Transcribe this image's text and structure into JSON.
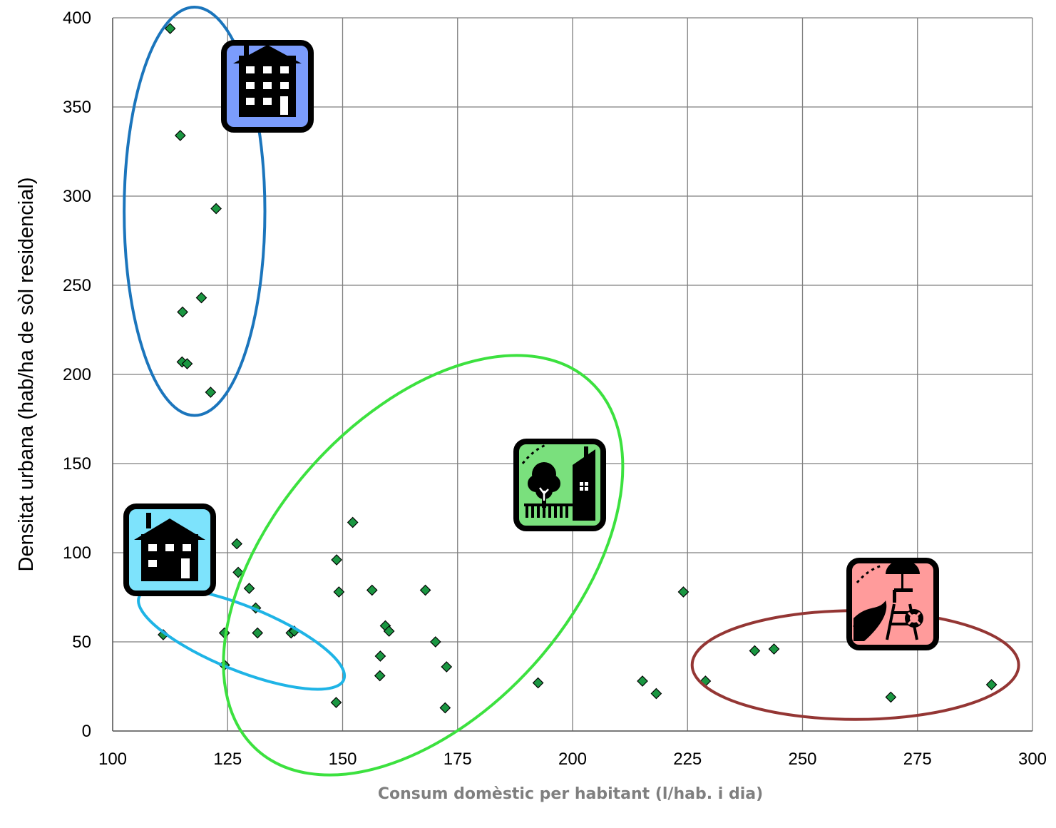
{
  "chart_data": {
    "type": "scatter",
    "title": "",
    "xlabel": "Consum domèstic per habitant (l/hab. i dia)",
    "ylabel": "Densitat urbana (hab/ha de sòl residencial)",
    "xlim": [
      100,
      300
    ],
    "ylim": [
      0,
      400
    ],
    "x_ticks": [
      100,
      125,
      150,
      175,
      200,
      225,
      250,
      275,
      300
    ],
    "y_ticks": [
      0,
      50,
      100,
      150,
      200,
      250,
      300,
      350,
      400
    ],
    "grid": true,
    "legend": "none",
    "marker": "diamond",
    "marker_color": "#1a9641",
    "points": [
      {
        "x": 112.5,
        "y": 394
      },
      {
        "x": 114.7,
        "y": 334
      },
      {
        "x": 122.5,
        "y": 293
      },
      {
        "x": 119.3,
        "y": 243
      },
      {
        "x": 115.2,
        "y": 235
      },
      {
        "x": 115.1,
        "y": 207
      },
      {
        "x": 116.2,
        "y": 206
      },
      {
        "x": 121.3,
        "y": 190
      },
      {
        "x": 111.0,
        "y": 54
      },
      {
        "x": 124.3,
        "y": 55
      },
      {
        "x": 124.3,
        "y": 37
      },
      {
        "x": 127.0,
        "y": 105
      },
      {
        "x": 127.3,
        "y": 89
      },
      {
        "x": 129.7,
        "y": 80
      },
      {
        "x": 131.1,
        "y": 69
      },
      {
        "x": 131.5,
        "y": 55
      },
      {
        "x": 138.8,
        "y": 55
      },
      {
        "x": 139.5,
        "y": 56
      },
      {
        "x": 148.7,
        "y": 96
      },
      {
        "x": 149.2,
        "y": 78
      },
      {
        "x": 148.6,
        "y": 16
      },
      {
        "x": 152.2,
        "y": 117
      },
      {
        "x": 156.4,
        "y": 79
      },
      {
        "x": 158.2,
        "y": 42
      },
      {
        "x": 158.1,
        "y": 31
      },
      {
        "x": 159.3,
        "y": 59
      },
      {
        "x": 160.1,
        "y": 56
      },
      {
        "x": 168.0,
        "y": 79
      },
      {
        "x": 170.2,
        "y": 50
      },
      {
        "x": 172.6,
        "y": 36
      },
      {
        "x": 172.3,
        "y": 13
      },
      {
        "x": 192.5,
        "y": 27
      },
      {
        "x": 215.2,
        "y": 28
      },
      {
        "x": 218.2,
        "y": 21
      },
      {
        "x": 224.1,
        "y": 78
      },
      {
        "x": 228.9,
        "y": 28
      },
      {
        "x": 239.6,
        "y": 45
      },
      {
        "x": 243.8,
        "y": 46
      },
      {
        "x": 269.2,
        "y": 19
      },
      {
        "x": 291.1,
        "y": 26
      }
    ],
    "groups": [
      {
        "cx": 117.8,
        "cy": 291.5,
        "rx": 15.3,
        "ry": 114.5,
        "rotate": 0,
        "color": "#1b75bc",
        "icon": "apartment-building-icon",
        "icon_color": "#7b9cfc"
      },
      {
        "cx": 128.0,
        "cy": 52.0,
        "rx": 24.0,
        "ry": 18.0,
        "rotate": 22,
        "color": "#1fb4e6",
        "icon": "small-house-icon",
        "icon_color": "#7de3fc"
      },
      {
        "cx": 167.5,
        "cy": 93.0,
        "rx": 54.0,
        "ry": 83.5,
        "rotate": -48,
        "color": "#3ce13f",
        "icon": "house-garden-icon",
        "icon_color": "#7ae07d"
      },
      {
        "cx": 261.5,
        "cy": 37.0,
        "rx": 35.5,
        "ry": 30.5,
        "rotate": 0,
        "color": "#943634",
        "icon": "beach-lifeguard-icon",
        "icon_color": "#ff9b9b"
      }
    ]
  }
}
